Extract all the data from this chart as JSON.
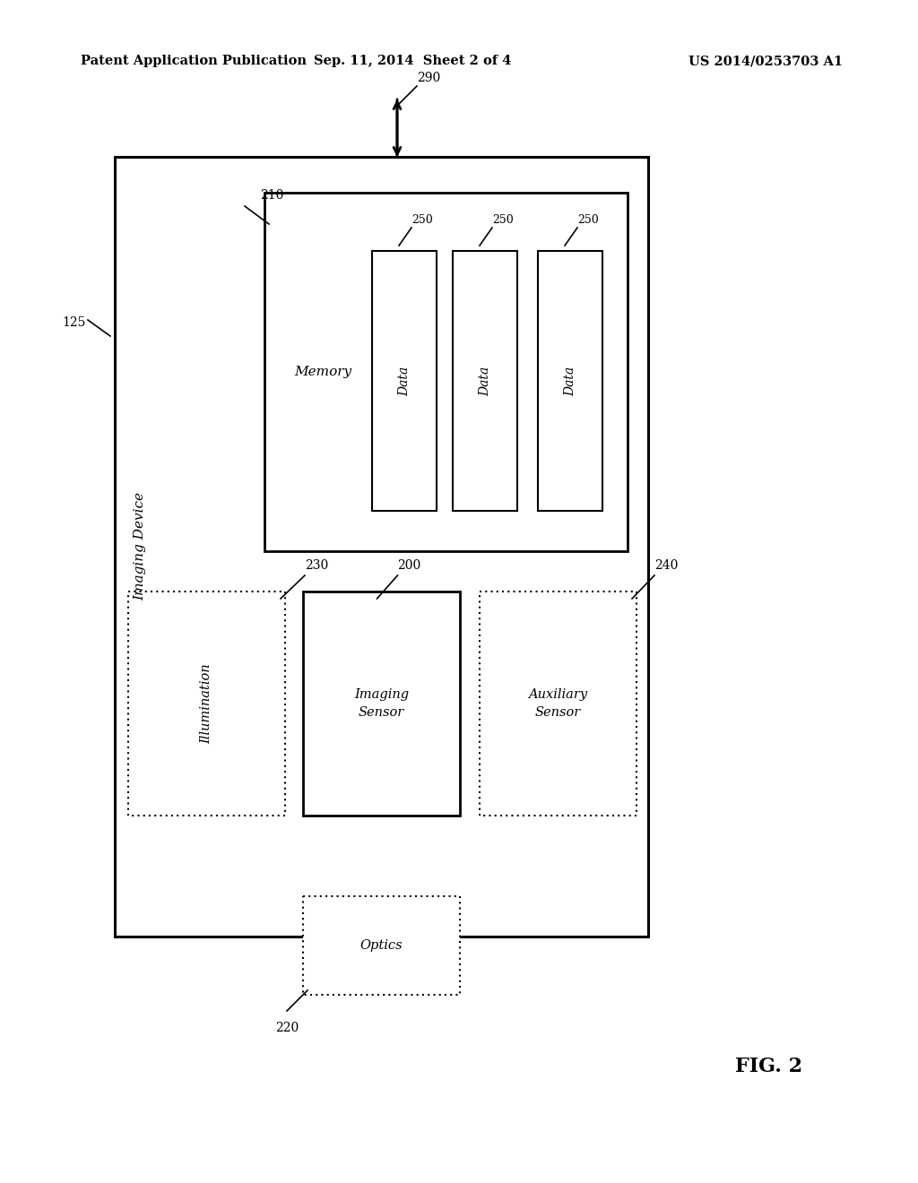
{
  "bg_color": "#ffffff",
  "header_left": "Patent Application Publication",
  "header_center": "Sep. 11, 2014  Sheet 2 of 4",
  "header_right": "US 2014/0253703 A1",
  "fig_label": "FIG. 2"
}
